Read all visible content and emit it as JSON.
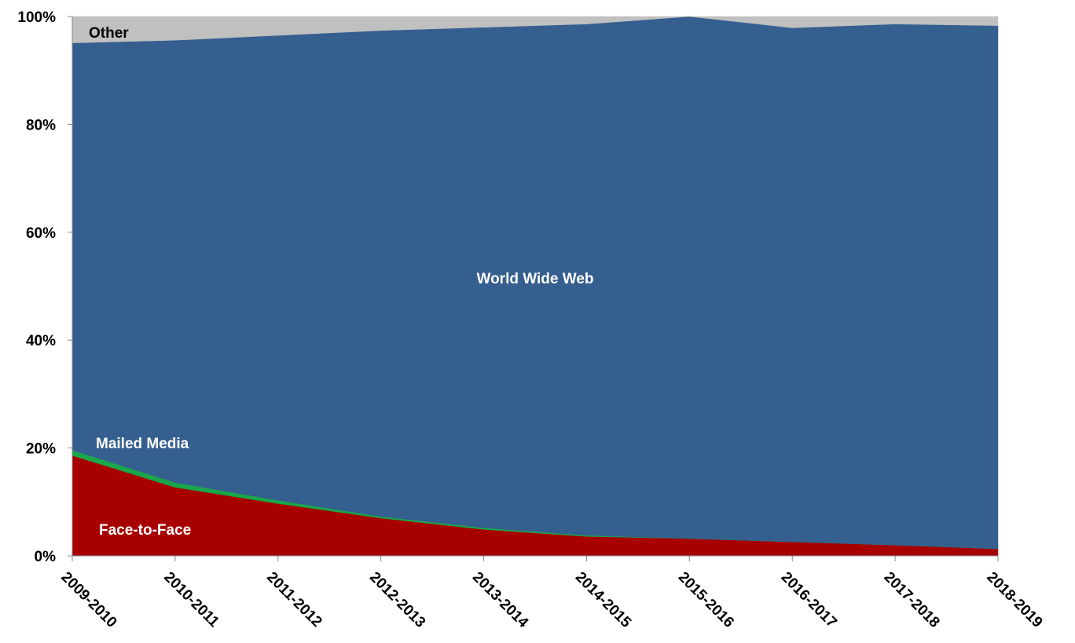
{
  "chart_data": {
    "type": "area",
    "stacked": true,
    "percent": true,
    "categories": [
      "2009-2010",
      "2010-2011",
      "2011-2012",
      "2012-2013",
      "2013-2014",
      "2014-2015",
      "2015-2016",
      "2016-2017",
      "2017-2018",
      "2018-2019"
    ],
    "series": [
      {
        "name": "Face-to-Face",
        "color": "#a80000",
        "values": [
          18.6,
          12.7,
          9.7,
          7.0,
          4.9,
          3.6,
          3.2,
          2.6,
          2.0,
          1.3
        ]
      },
      {
        "name": "Mailed Media",
        "color": "#1aa64a",
        "values": [
          1.0,
          0.9,
          0.6,
          0.3,
          0.3,
          0.2,
          0.0,
          0.0,
          0.0,
          0.0
        ]
      },
      {
        "name": "World Wide Web",
        "color": "#355f8f",
        "values": [
          75.5,
          82.0,
          86.2,
          90.1,
          92.8,
          94.8,
          96.8,
          95.3,
          96.6,
          97.0
        ]
      },
      {
        "name": "Other",
        "color": "#c0c0c0",
        "values": [
          4.9,
          4.4,
          3.5,
          2.6,
          2.0,
          1.4,
          0.0,
          2.1,
          1.4,
          1.7
        ]
      }
    ],
    "ylim": [
      0,
      100
    ],
    "yticks": [
      "0%",
      "20%",
      "40%",
      "60%",
      "80%",
      "100%"
    ],
    "xlabel": "",
    "ylabel": "",
    "title": "",
    "legend": "inline labels"
  }
}
